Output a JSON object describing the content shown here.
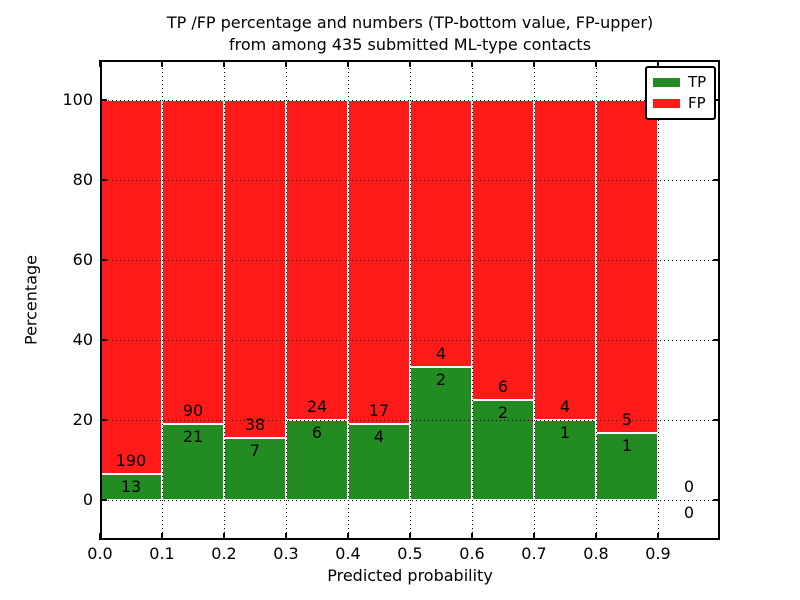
{
  "title": {
    "line1": "TP /FP percentage and numbers (TP-bottom value, FP-upper)",
    "line2": "from among 435 submitted ML-type contacts"
  },
  "axes": {
    "xlabel": "Predicted probability",
    "ylabel": "Percentage",
    "x_tick_labels": [
      "0.0",
      "0.1",
      "0.2",
      "0.3",
      "0.4",
      "0.5",
      "0.6",
      "0.7",
      "0.8",
      "0.9"
    ],
    "y_tick_labels": [
      "0",
      "20",
      "40",
      "60",
      "80",
      "100"
    ]
  },
  "legend": {
    "position": "upper right",
    "items": [
      {
        "label": "TP",
        "color": "#228b22"
      },
      {
        "label": "FP",
        "color": "#ff1a1a"
      }
    ]
  },
  "colors": {
    "tp": "#228b22",
    "fp": "#ff1a1a",
    "grid": "#000000",
    "background": "#ffffff",
    "bar_edge": "#ffffff"
  },
  "chart_data": {
    "type": "bar",
    "stacked": true,
    "normalization": "each bin scaled to 100%, green = TP share, red = FP share",
    "title": "TP /FP percentage and numbers (TP-bottom value, FP-upper) from among 435 submitted ML-type contacts",
    "xlabel": "Predicted probability",
    "ylabel": "Percentage",
    "xlim": [
      0.0,
      1.0
    ],
    "ylim": [
      -10,
      110
    ],
    "x_ticks": [
      0.0,
      0.1,
      0.2,
      0.3,
      0.4,
      0.5,
      0.6,
      0.7,
      0.8,
      0.9
    ],
    "y_ticks": [
      0,
      20,
      40,
      60,
      80,
      100
    ],
    "grid": true,
    "legend_position": "upper right",
    "bins": [
      {
        "range": [
          0.0,
          0.1
        ],
        "tp": 13,
        "fp": 190,
        "tp_percent": 6.4
      },
      {
        "range": [
          0.1,
          0.2
        ],
        "tp": 21,
        "fp": 90,
        "tp_percent": 18.92
      },
      {
        "range": [
          0.2,
          0.3
        ],
        "tp": 7,
        "fp": 38,
        "tp_percent": 15.56
      },
      {
        "range": [
          0.3,
          0.4
        ],
        "tp": 6,
        "fp": 24,
        "tp_percent": 20.0
      },
      {
        "range": [
          0.4,
          0.5
        ],
        "tp": 4,
        "fp": 17,
        "tp_percent": 19.05
      },
      {
        "range": [
          0.5,
          0.6
        ],
        "tp": 2,
        "fp": 4,
        "tp_percent": 33.33
      },
      {
        "range": [
          0.6,
          0.7
        ],
        "tp": 2,
        "fp": 6,
        "tp_percent": 25.0
      },
      {
        "range": [
          0.7,
          0.8
        ],
        "tp": 1,
        "fp": 4,
        "tp_percent": 20.0
      },
      {
        "range": [
          0.8,
          0.9
        ],
        "tp": 1,
        "fp": 5,
        "tp_percent": 16.67
      },
      {
        "range": [
          0.9,
          1.0
        ],
        "tp": 0,
        "fp": 0,
        "tp_percent": null
      }
    ],
    "series": [
      {
        "name": "TP",
        "color": "#228b22",
        "values": [
          13,
          21,
          7,
          6,
          4,
          2,
          2,
          1,
          1,
          0
        ]
      },
      {
        "name": "FP",
        "color": "#ff1a1a",
        "values": [
          190,
          90,
          38,
          24,
          17,
          4,
          6,
          4,
          5,
          0
        ]
      }
    ]
  }
}
